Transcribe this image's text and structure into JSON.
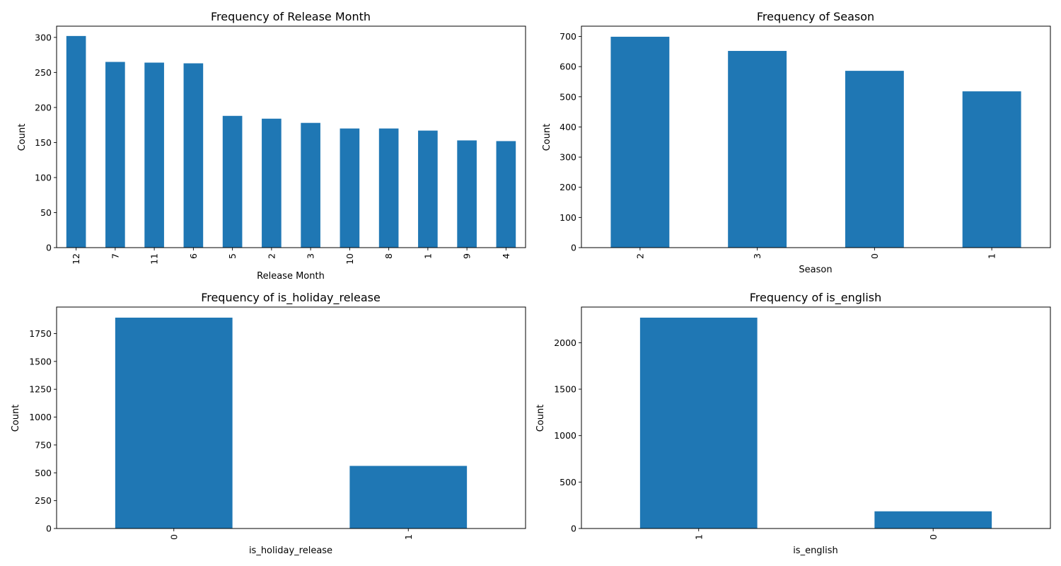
{
  "colors": {
    "bar": "#1f77b4",
    "axis": "#000000"
  },
  "chart_data": [
    {
      "type": "bar",
      "title": "Frequency of Release Month",
      "xlabel": "Release Month",
      "ylabel": "Count",
      "categories": [
        "12",
        "7",
        "11",
        "6",
        "5",
        "2",
        "3",
        "10",
        "8",
        "1",
        "9",
        "4"
      ],
      "values": [
        302,
        265,
        264,
        263,
        188,
        184,
        178,
        170,
        170,
        167,
        153,
        152
      ],
      "ylim": [
        0,
        316
      ],
      "yticks": [
        0,
        50,
        100,
        150,
        200,
        250,
        300
      ],
      "xtick_rotation": 90,
      "grid": false,
      "legend": "none"
    },
    {
      "type": "bar",
      "title": "Frequency of Season",
      "xlabel": "Season",
      "ylabel": "Count",
      "categories": [
        "2",
        "3",
        "0",
        "1"
      ],
      "values": [
        699,
        652,
        586,
        518
      ],
      "ylim": [
        0,
        734
      ],
      "yticks": [
        0,
        100,
        200,
        300,
        400,
        500,
        600,
        700
      ],
      "xtick_rotation": 90,
      "grid": false,
      "legend": "none"
    },
    {
      "type": "bar",
      "title": "Frequency of is_holiday_release",
      "xlabel": "is_holiday_release",
      "ylabel": "Count",
      "categories": [
        "0",
        "1"
      ],
      "values": [
        1893,
        562
      ],
      "ylim": [
        0,
        1988
      ],
      "yticks": [
        0,
        250,
        500,
        750,
        1000,
        1250,
        1500,
        1750
      ],
      "xtick_rotation": 90,
      "grid": false,
      "legend": "none"
    },
    {
      "type": "bar",
      "title": "Frequency of is_english",
      "xlabel": "is_english",
      "ylabel": "Count",
      "categories": [
        "1",
        "0"
      ],
      "values": [
        2270,
        185
      ],
      "ylim": [
        0,
        2384
      ],
      "yticks": [
        0,
        500,
        1000,
        1500,
        2000
      ],
      "xtick_rotation": 90,
      "grid": false,
      "legend": "none"
    }
  ]
}
